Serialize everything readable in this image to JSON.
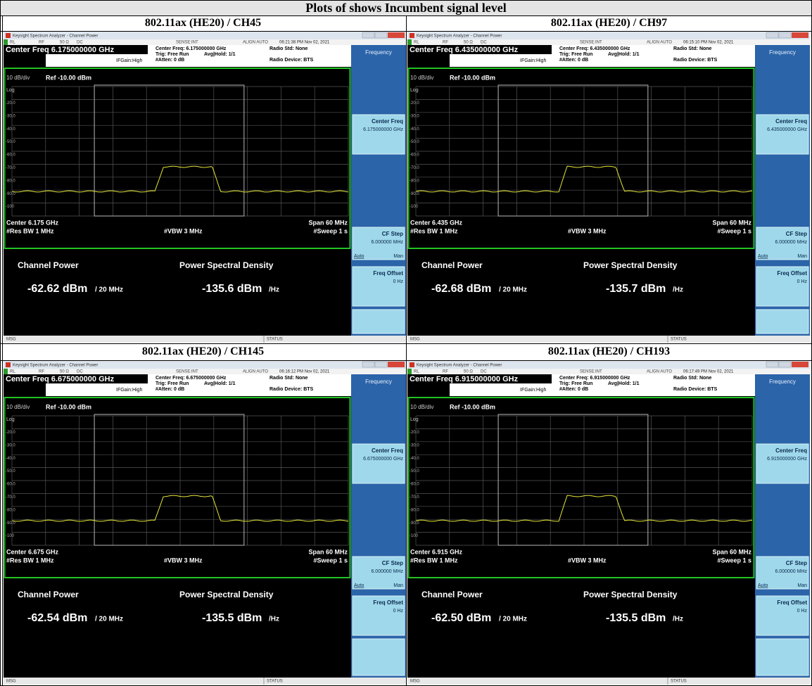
{
  "title": "Plots of shows Incumbent signal level",
  "analyzer": {
    "window_title": "Keysight Spectrum Analyzer - Channel Power",
    "status": [
      "RL",
      "RF",
      "50 Ω",
      "DC",
      "SENSE:INT",
      "ALIGN AUTO"
    ],
    "trig": "Trig: Free Run",
    "avg": "Avg|Hold: 1/1",
    "atten": "#Atten: 0 dB",
    "ifgain": "IFGain:High",
    "radio_std": "Radio Std: None",
    "radio_device": "Radio Device: BTS",
    "scale": "10 dB/div",
    "ref": "Ref -10.00 dBm",
    "log": "Log",
    "y_labels": [
      "-20.0",
      "-30.0",
      "-40.0",
      "-50.0",
      "-60.0",
      "-70.0",
      "-80.0",
      "-90.0",
      "-100"
    ],
    "res_bw": "#Res BW 1 MHz",
    "vbw": "#VBW 3 MHz",
    "span": "Span 60 MHz",
    "sweep": "#Sweep 1 s",
    "channel_power_label": "Channel Power",
    "psd_label": "Power Spectral Density",
    "per_bw": "/ 20 MHz",
    "per_hz": "/Hz",
    "menu": "Frequency",
    "center_freq_key": "Center Freq",
    "cf_step_key": "CF Step",
    "cf_step_value": "6.000000 MHz",
    "auto": "Auto",
    "man": "Man",
    "freq_offset_key": "Freq Offset",
    "freq_offset_value": "0 Hz",
    "msg": "MSG",
    "status_bar": "STATUS"
  },
  "panels": [
    {
      "heading": "802.11ax (HE20) / CH45",
      "timestamp": "06:21:38 PM Nov 02, 2021",
      "center_freq_title": "Center Freq 6.175000000 GHz",
      "center_freq_info": "Center Freq: 6.175000000 GHz",
      "center_freq_key_value": "6.175000000 GHz",
      "center": "Center 6.175 GHz",
      "channel_power": "-62.62 dBm",
      "psd": "-135.6 dBm"
    },
    {
      "heading": "802.11ax (HE20) / CH97",
      "timestamp": "06:15:10 PM Nov 02, 2021",
      "center_freq_title": "Center Freq 6.435000000 GHz",
      "center_freq_info": "Center Freq: 6.435000000 GHz",
      "center_freq_key_value": "6.435000000 GHz",
      "center": "Center 6.435 GHz",
      "channel_power": "-62.68 dBm",
      "psd": "-135.7 dBm"
    },
    {
      "heading": "802.11ax (HE20) / CH145",
      "timestamp": "06:16:12 PM Nov 02, 2021",
      "center_freq_title": "Center Freq 6.675000000 GHz",
      "center_freq_info": "Center Freq: 6.675000000 GHz",
      "center_freq_key_value": "6.675000000 GHz",
      "center": "Center 6.675 GHz",
      "channel_power": "-62.54 dBm",
      "psd": "-135.5 dBm"
    },
    {
      "heading": "802.11ax (HE20) / CH193",
      "timestamp": "06:17:49 PM Nov 02, 2021",
      "center_freq_title": "Center Freq 6.915000000 GHz",
      "center_freq_info": "Center Freq: 6.915000000 GHz",
      "center_freq_key_value": "6.915000000 GHz",
      "center": "Center 6.915 GHz",
      "channel_power": "-62.50 dBm",
      "psd": "-135.5 dBm"
    }
  ]
}
